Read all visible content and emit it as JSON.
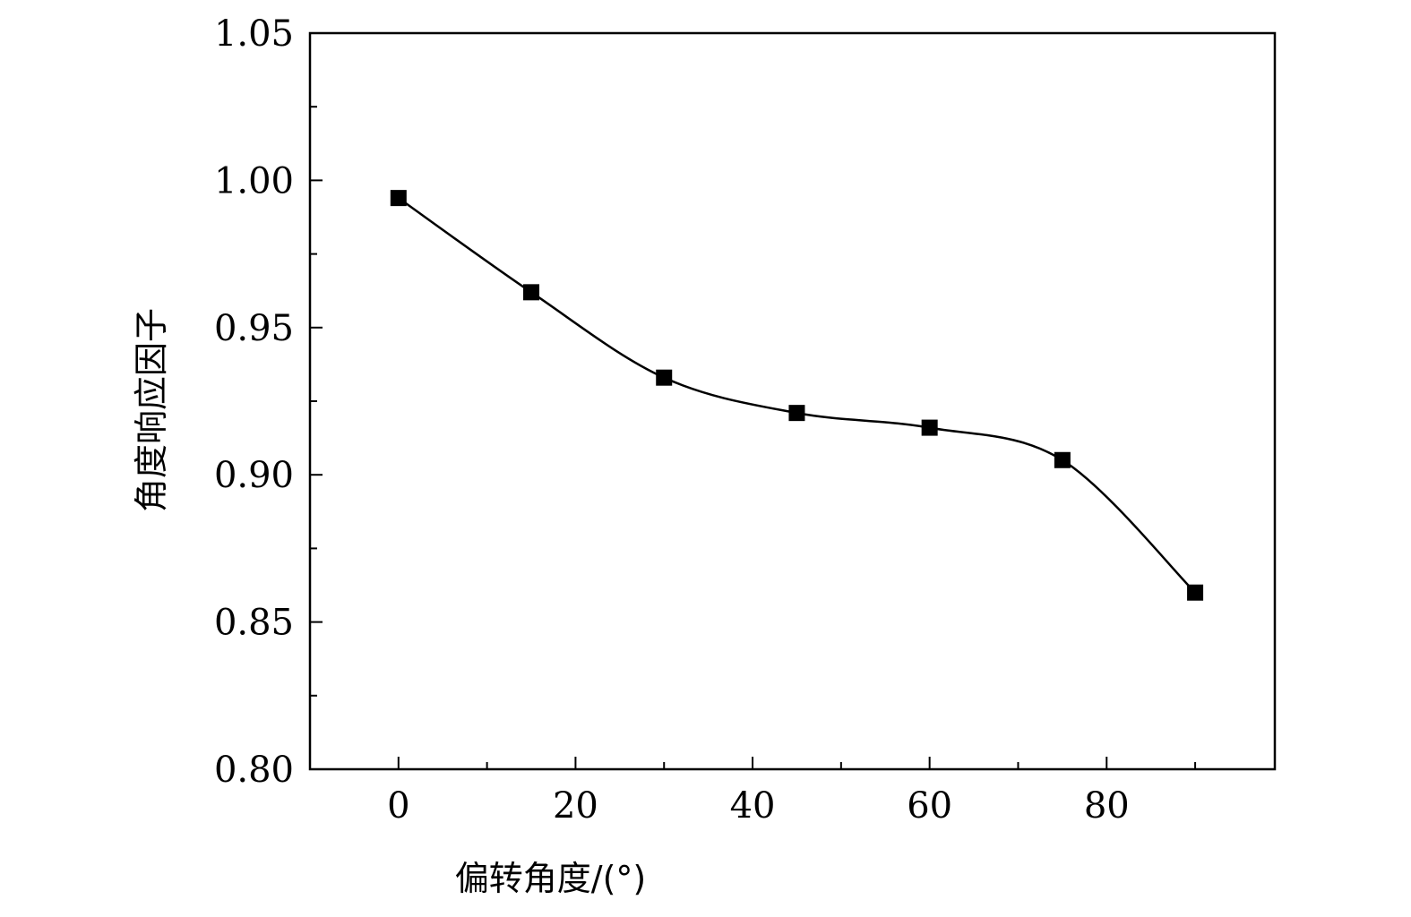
{
  "chart_data": {
    "type": "line",
    "title": "",
    "xlabel": "偏转角度/(°)",
    "ylabel": "角度响应因子",
    "xlim": [
      -10,
      99
    ],
    "ylim": [
      0.8,
      1.05
    ],
    "x_ticks": [
      0,
      20,
      40,
      60,
      80
    ],
    "x_tick_labels": [
      "0",
      "20",
      "40",
      "60",
      "80"
    ],
    "y_ticks": [
      0.8,
      0.85,
      0.9,
      0.95,
      1.0,
      1.05
    ],
    "y_tick_labels": [
      "0.80",
      "0.85",
      "0.90",
      "0.95",
      "1.00",
      "1.05"
    ],
    "grid": false,
    "marker": "square",
    "line_color": "#000000",
    "series": [
      {
        "x": [
          0,
          15,
          30,
          45,
          60,
          75,
          90
        ],
        "y": [
          0.994,
          0.962,
          0.933,
          0.921,
          0.916,
          0.905,
          0.86
        ]
      }
    ]
  }
}
